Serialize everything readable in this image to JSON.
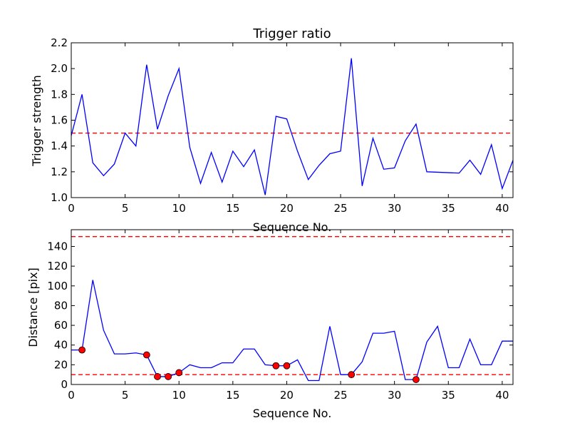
{
  "chart_data": [
    {
      "type": "line",
      "title": "Trigger ratio",
      "xlabel": "Sequence No.",
      "ylabel": "Trigger strength",
      "xlim": [
        0,
        41
      ],
      "ylim": [
        1.0,
        2.2
      ],
      "xticks": [
        0,
        5,
        10,
        15,
        20,
        25,
        30,
        35,
        40
      ],
      "yticks": [
        1.0,
        1.2,
        1.4,
        1.6,
        1.8,
        2.0,
        2.2
      ],
      "xtick_labels": [
        "0",
        "5",
        "10",
        "15",
        "20",
        "25",
        "30",
        "35",
        "40"
      ],
      "ytick_labels": [
        "1.0",
        "1.2",
        "1.4",
        "1.6",
        "1.8",
        "2.0",
        "2.2"
      ],
      "series": [
        {
          "color": "#0000ff",
          "x": [
            0,
            1,
            2,
            3,
            4,
            5,
            6,
            7,
            8,
            9,
            10,
            11,
            12,
            13,
            14,
            15,
            16,
            17,
            18,
            19,
            20,
            21,
            22,
            23,
            24,
            25,
            26,
            27,
            28,
            29,
            30,
            31,
            32,
            33,
            36,
            37,
            38,
            39,
            40,
            41
          ],
          "values": [
            1.48,
            1.8,
            1.27,
            1.17,
            1.26,
            1.5,
            1.4,
            2.03,
            1.53,
            1.79,
            2.0,
            1.39,
            1.11,
            1.35,
            1.12,
            1.36,
            1.24,
            1.37,
            1.02,
            1.63,
            1.61,
            1.36,
            1.14,
            1.25,
            1.34,
            1.36,
            2.08,
            1.09,
            1.46,
            1.22,
            1.23,
            1.44,
            1.57,
            1.2,
            1.19,
            1.29,
            1.18,
            1.41,
            1.07,
            1.29
          ]
        }
      ],
      "hlines": [
        {
          "y": 1.5,
          "color": "#ff0000",
          "style": "dashed"
        }
      ]
    },
    {
      "type": "line",
      "title": "",
      "xlabel": "Sequence No.",
      "ylabel": "Distance [pix]",
      "xlim": [
        0,
        41
      ],
      "ylim": [
        0,
        157
      ],
      "xticks": [
        0,
        5,
        10,
        15,
        20,
        25,
        30,
        35,
        40
      ],
      "yticks": [
        0,
        20,
        40,
        60,
        80,
        100,
        120,
        140
      ],
      "xtick_labels": [
        "0",
        "5",
        "10",
        "15",
        "20",
        "25",
        "30",
        "35",
        "40"
      ],
      "ytick_labels": [
        "0",
        "20",
        "40",
        "60",
        "80",
        "100",
        "120",
        "140"
      ],
      "series": [
        {
          "color": "#0000ff",
          "x": [
            0,
            1,
            2,
            3,
            4,
            5,
            6,
            7,
            8,
            9,
            10,
            11,
            12,
            13,
            14,
            15,
            16,
            17,
            18,
            19,
            20,
            21,
            22,
            23,
            24,
            25,
            26,
            27,
            28,
            29,
            30,
            31,
            32,
            33,
            34,
            35,
            36,
            37,
            38,
            39,
            40,
            41
          ],
          "values": [
            35,
            35,
            106,
            55,
            31,
            31,
            32,
            30,
            8,
            8,
            12,
            20,
            17,
            17,
            22,
            22,
            36,
            36,
            20,
            19,
            19,
            25,
            4,
            4,
            59,
            10,
            10,
            23,
            52,
            52,
            54,
            5,
            5,
            43,
            59,
            17,
            17,
            46,
            20,
            20,
            44,
            44
          ]
        }
      ],
      "markers": {
        "color": "#ff0000",
        "x": [
          1,
          7,
          8,
          9,
          10,
          19,
          20,
          26,
          32
        ],
        "values": [
          35,
          30,
          8,
          8,
          12,
          19,
          19,
          10,
          5
        ]
      },
      "hlines": [
        {
          "y": 150,
          "color": "#ff0000",
          "style": "dashed"
        },
        {
          "y": 10,
          "color": "#ff0000",
          "style": "dashed"
        }
      ]
    }
  ]
}
